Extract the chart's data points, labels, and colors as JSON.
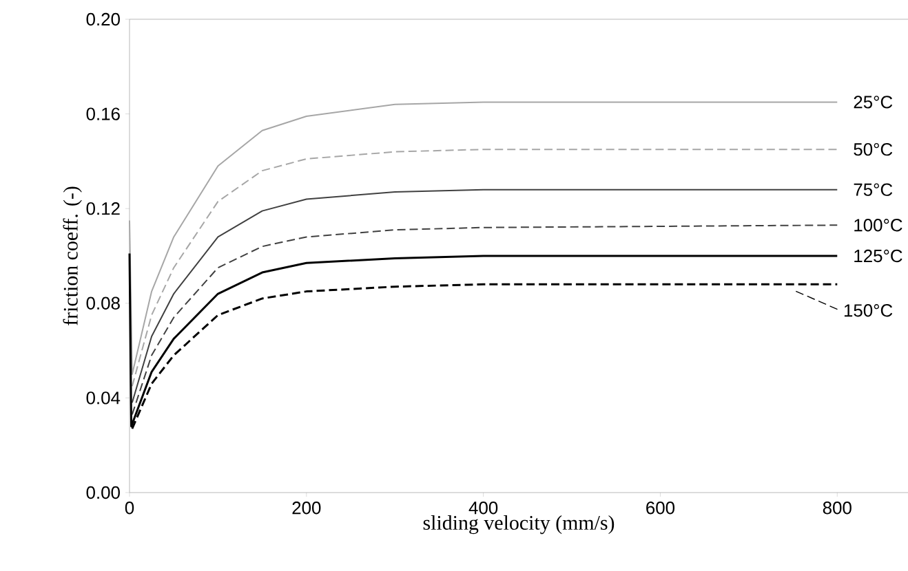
{
  "chart_data": {
    "type": "line",
    "xlabel": "sliding velocity (mm/s)",
    "ylabel": "friction coeff. (-)",
    "xlim": [
      0,
      880
    ],
    "ylim": [
      0,
      0.2
    ],
    "xticks": [
      0,
      200,
      400,
      600,
      800
    ],
    "yticks": [
      {
        "value": 0,
        "label": "0.00"
      },
      {
        "value": 0.04,
        "label": "0.04"
      },
      {
        "value": 0.08,
        "label": "0.08"
      },
      {
        "value": 0.12,
        "label": "0.12"
      },
      {
        "value": 0.16,
        "label": "0.16"
      },
      {
        "value": 0.2,
        "label": "0.20"
      }
    ],
    "grid": false,
    "marker": "none",
    "series": [
      {
        "name": "25°C",
        "color": "#a6a6a6",
        "line_style": "solid",
        "x": [
          0,
          3,
          25,
          50,
          100,
          150,
          200,
          300,
          400,
          800
        ],
        "values": [
          0.115,
          0.05,
          0.085,
          0.108,
          0.138,
          0.153,
          0.159,
          0.164,
          0.165,
          0.165
        ]
      },
      {
        "name": "50°C",
        "color": "#a6a6a6",
        "line_style": "dashed",
        "x": [
          3,
          25,
          50,
          100,
          150,
          200,
          300,
          400,
          800
        ],
        "values": [
          0.045,
          0.075,
          0.095,
          0.123,
          0.136,
          0.141,
          0.144,
          0.145,
          0.145
        ]
      },
      {
        "name": "75°C",
        "color": "#404040",
        "line_style": "solid",
        "x": [
          3,
          25,
          50,
          100,
          150,
          200,
          300,
          400,
          800
        ],
        "values": [
          0.038,
          0.066,
          0.084,
          0.108,
          0.119,
          0.124,
          0.127,
          0.128,
          0.128
        ]
      },
      {
        "name": "100°C",
        "color": "#404040",
        "line_style": "dashed",
        "x": [
          3,
          25,
          50,
          100,
          150,
          200,
          300,
          400,
          800
        ],
        "values": [
          0.033,
          0.058,
          0.074,
          0.095,
          0.104,
          0.108,
          0.111,
          0.112,
          0.113
        ]
      },
      {
        "name": "125°C",
        "color": "#000000",
        "line_style": "solid",
        "x": [
          0,
          2,
          25,
          50,
          100,
          150,
          200,
          300,
          400,
          800
        ],
        "values": [
          0.101,
          0.028,
          0.051,
          0.065,
          0.084,
          0.093,
          0.097,
          0.099,
          0.1,
          0.1
        ]
      },
      {
        "name": "150°C",
        "color": "#000000",
        "line_style": "dashed",
        "x": [
          3,
          25,
          50,
          100,
          150,
          200,
          300,
          400,
          800
        ],
        "values": [
          0.027,
          0.046,
          0.058,
          0.075,
          0.082,
          0.085,
          0.087,
          0.088,
          0.088
        ]
      }
    ]
  }
}
